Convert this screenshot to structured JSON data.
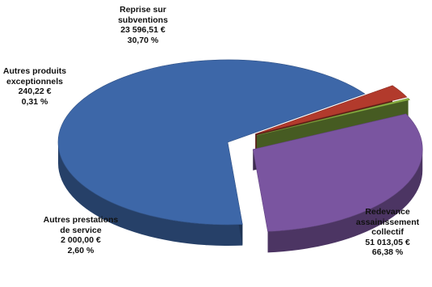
{
  "chart_data": {
    "type": "pie",
    "style": "3d-exploded",
    "slices": [
      {
        "label_lines": [
          "Redevance",
          "assainissement",
          "collectif"
        ],
        "value_text": "51 013,05 €",
        "percent_text": "66,38 %",
        "value": 51013.05,
        "percent": 66.38,
        "color": "#3d67a8"
      },
      {
        "label_lines": [
          "Autres prestations",
          "de service"
        ],
        "value_text": "2 000,00 €",
        "percent_text": "2,60 %",
        "value": 2000.0,
        "percent": 2.6,
        "color": "#b23a2c"
      },
      {
        "label_lines": [
          "Autres produits",
          "exceptionnels"
        ],
        "value_text": "240,22 €",
        "percent_text": "0,31 %",
        "value": 240.22,
        "percent": 0.31,
        "color": "#8cb544"
      },
      {
        "label_lines": [
          "Reprise sur",
          "subventions"
        ],
        "value_text": "23 596,51 €",
        "percent_text": "30,70 %",
        "value": 23596.51,
        "percent": 30.7,
        "color": "#7a55a0"
      }
    ]
  }
}
